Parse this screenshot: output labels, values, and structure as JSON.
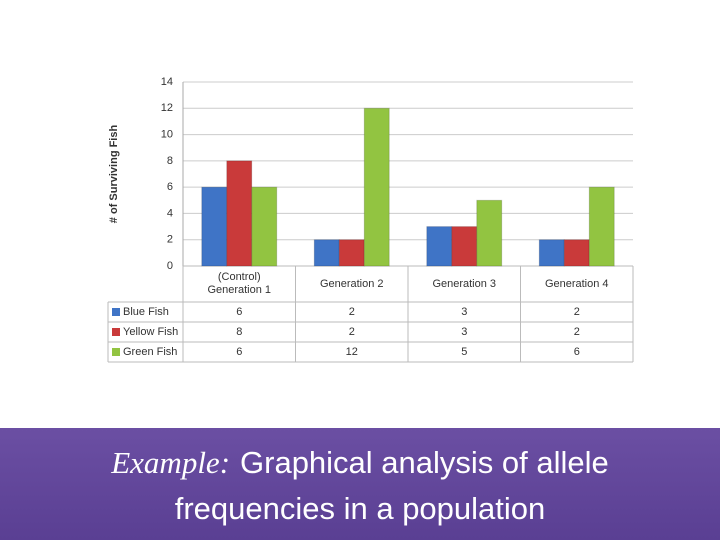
{
  "chart_data": {
    "type": "bar",
    "y_label": "# of Surviving Fish",
    "categories": [
      "(Control) Generation 1",
      "Generation 2",
      "Generation 3",
      "Generation 4"
    ],
    "series": [
      {
        "name": "Blue Fish",
        "color": "#3f74c6",
        "values": [
          6,
          2,
          3,
          2
        ]
      },
      {
        "name": "Yellow Fish",
        "color": "#c93a3a",
        "values": [
          8,
          2,
          3,
          2
        ]
      },
      {
        "name": "Green Fish",
        "color": "#92c441",
        "values": [
          6,
          12,
          5,
          6
        ]
      }
    ],
    "ylim": [
      0,
      14
    ],
    "yticks": [
      0,
      2,
      4,
      6,
      8,
      10,
      12,
      14
    ],
    "grid": true
  },
  "caption": {
    "prefix": "Example:",
    "text": "Graphical analysis of allele frequencies in a population"
  }
}
